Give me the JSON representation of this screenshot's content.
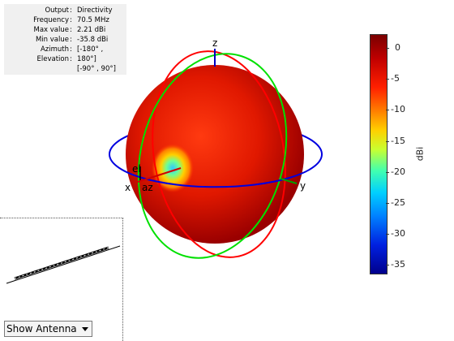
{
  "info_panel": {
    "rows": [
      {
        "key": "Output",
        "value": "Directivity"
      },
      {
        "key": "Frequency",
        "value": "70.5 MHz"
      },
      {
        "key": "Max value",
        "value": "2.21 dBi"
      },
      {
        "key": "Min value",
        "value": "-35.8 dBi"
      },
      {
        "key": "Azimuth",
        "value": "[-180° ,"
      },
      {
        "key": "Elevation",
        "value": "180°]"
      }
    ],
    "extra_line": "[-90° , 90°]"
  },
  "axes": {
    "x": "x",
    "y": "y",
    "z": "z",
    "az": "az",
    "el": "el"
  },
  "colorbar": {
    "unit": "dBi",
    "ticks": [
      "0",
      "-5",
      "-10",
      "-15",
      "-20",
      "-25",
      "-30",
      "-35"
    ],
    "colors": {
      "top": "#7a0000",
      "bottom": "#00008c"
    }
  },
  "dropdown": {
    "selected": "Show Antenna"
  },
  "colors": {
    "circle_x": "#ff0000",
    "circle_y": "#00e000",
    "circle_z": "#0000e0"
  }
}
